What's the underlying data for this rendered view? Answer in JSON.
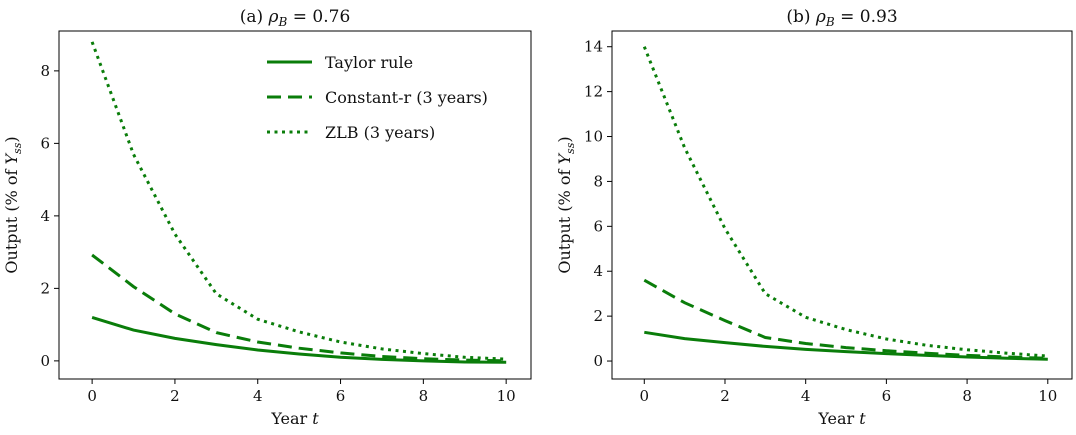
{
  "colors": {
    "series": "#0a7d0a",
    "axis": "#000000"
  },
  "chart_data": [
    {
      "type": "line",
      "title_prefix": "(a) ",
      "title_symbol": "ρ",
      "title_sub": "B",
      "title_value": " = 0.76",
      "xlabel_prefix": "Year ",
      "xlabel_var": "t",
      "ylabel_prefix": "Output (% of ",
      "ylabel_var": "Y",
      "ylabel_sub": "ss",
      "ylabel_suffix": ")",
      "xlim": [
        -0.8,
        10.6
      ],
      "ylim": [
        -0.5,
        9.1
      ],
      "xticks": [
        0,
        2,
        4,
        6,
        8,
        10
      ],
      "yticks": [
        0,
        2,
        4,
        6,
        8
      ],
      "legend": "top-right",
      "series": [
        {
          "name": "Taylor rule",
          "style": "solid",
          "x": [
            0,
            1,
            2,
            3,
            4,
            5,
            6,
            7,
            8,
            9,
            10
          ],
          "y": [
            1.2,
            0.85,
            0.62,
            0.45,
            0.3,
            0.19,
            0.1,
            0.04,
            0.0,
            -0.03,
            -0.04
          ]
        },
        {
          "name": "Constant-r (3 years)",
          "style": "dashed",
          "x": [
            0,
            1,
            2,
            3,
            4,
            5,
            6,
            7,
            8,
            9,
            10
          ],
          "y": [
            2.92,
            2.05,
            1.3,
            0.78,
            0.52,
            0.35,
            0.22,
            0.12,
            0.06,
            0.02,
            0.0
          ]
        },
        {
          "name": "ZLB (3 years)",
          "style": "dotted",
          "x": [
            0,
            1,
            2,
            3,
            4,
            5,
            6,
            7,
            8,
            9,
            10
          ],
          "y": [
            8.8,
            5.7,
            3.5,
            1.85,
            1.15,
            0.8,
            0.52,
            0.33,
            0.2,
            0.1,
            0.05
          ]
        }
      ]
    },
    {
      "type": "line",
      "title_prefix": "(b) ",
      "title_symbol": "ρ",
      "title_sub": "B",
      "title_value": " = 0.93",
      "xlabel_prefix": "Year ",
      "xlabel_var": "t",
      "ylabel_prefix": "Output (% of ",
      "ylabel_var": "Y",
      "ylabel_sub": "ss",
      "ylabel_suffix": ")",
      "xlim": [
        -0.8,
        10.6
      ],
      "ylim": [
        -0.8,
        14.7
      ],
      "xticks": [
        0,
        2,
        4,
        6,
        8,
        10
      ],
      "yticks": [
        0,
        2,
        4,
        6,
        8,
        10,
        12,
        14
      ],
      "series": [
        {
          "name": "Taylor rule",
          "style": "solid",
          "x": [
            0,
            1,
            2,
            3,
            4,
            5,
            6,
            7,
            8,
            9,
            10
          ],
          "y": [
            1.28,
            1.0,
            0.82,
            0.65,
            0.52,
            0.42,
            0.33,
            0.25,
            0.18,
            0.12,
            0.08
          ]
        },
        {
          "name": "Constant-r (3 years)",
          "style": "dashed",
          "x": [
            0,
            1,
            2,
            3,
            4,
            5,
            6,
            7,
            8,
            9,
            10
          ],
          "y": [
            3.6,
            2.6,
            1.8,
            1.05,
            0.78,
            0.6,
            0.46,
            0.35,
            0.25,
            0.18,
            0.12
          ]
        },
        {
          "name": "ZLB (3 years)",
          "style": "dotted",
          "x": [
            0,
            1,
            2,
            3,
            4,
            5,
            6,
            7,
            8,
            9,
            10
          ],
          "y": [
            14.0,
            9.5,
            5.9,
            3.0,
            1.95,
            1.4,
            0.98,
            0.7,
            0.5,
            0.35,
            0.22
          ]
        }
      ]
    }
  ]
}
